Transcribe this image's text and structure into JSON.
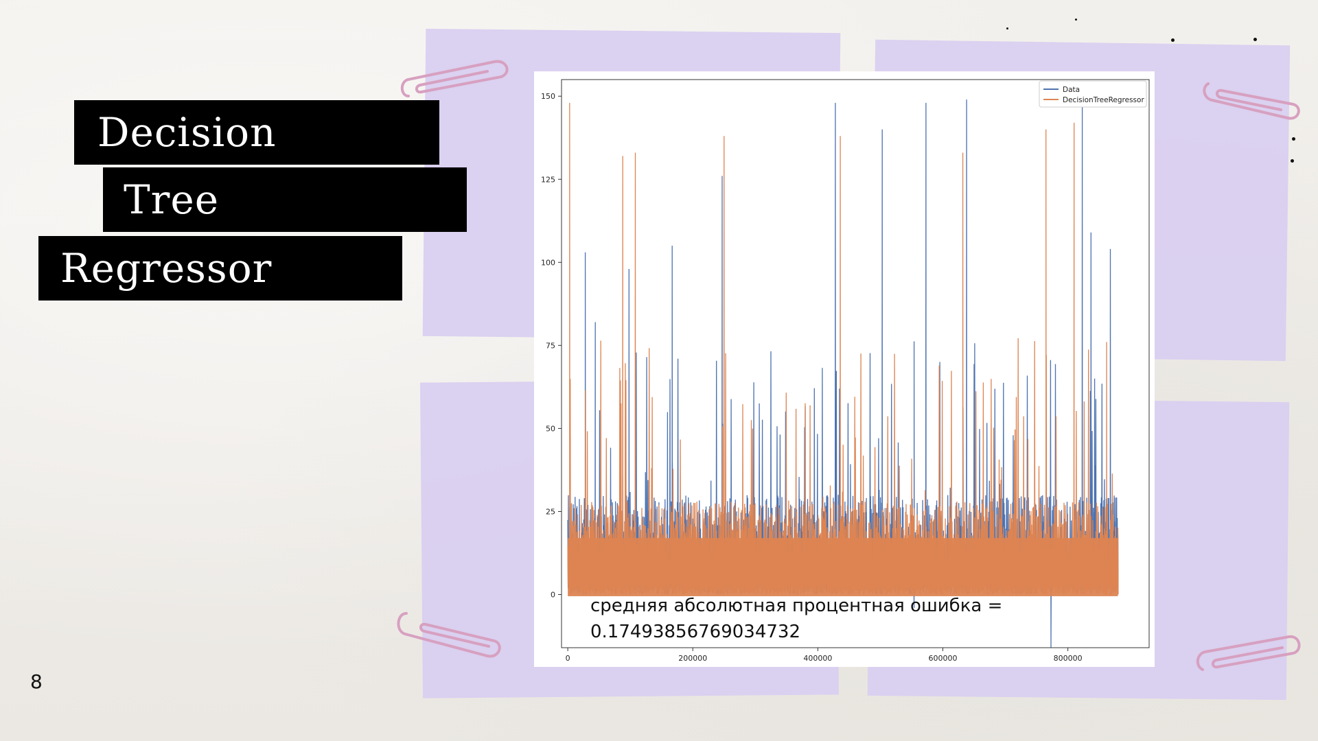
{
  "slide": {
    "title_lines": [
      "Decision",
      "Tree",
      "Regressor"
    ],
    "page_number": "8"
  },
  "colors": {
    "note": "#d9cff0",
    "title_bg": "#000000",
    "title_text": "#ffffff",
    "data_series": "#4c72b0",
    "model_series": "#dd8452"
  },
  "chart_data": {
    "type": "line",
    "series": [
      {
        "name": "Data",
        "color": "#4c72b0"
      },
      {
        "name": "DecisionTreeRegressor",
        "color": "#dd8452"
      }
    ],
    "xlim": [
      -10000,
      930000
    ],
    "ylim": [
      -16,
      155
    ],
    "x_ticks": [
      "0",
      "200000",
      "400000",
      "600000",
      "800000"
    ],
    "x_tick_values": [
      0,
      200000,
      400000,
      600000,
      800000
    ],
    "y_ticks": [
      "0",
      "25",
      "50",
      "75",
      "100",
      "125",
      "150"
    ],
    "y_tick_values": [
      0,
      25,
      50,
      75,
      100,
      125,
      150
    ],
    "x_range_data": [
      0,
      880000
    ],
    "legend_position": "top-right",
    "annotation_line1": "средняя абсолютная процентная ошибка =",
    "annotation_line2": "0.17493856769034732",
    "data_peaks": [
      {
        "x": 28000,
        "y": 103
      },
      {
        "x": 44000,
        "y": 82
      },
      {
        "x": 98000,
        "y": 98
      },
      {
        "x": 167000,
        "y": 105
      },
      {
        "x": 247000,
        "y": 126
      },
      {
        "x": 428000,
        "y": 148
      },
      {
        "x": 503000,
        "y": 140
      },
      {
        "x": 573000,
        "y": 148
      },
      {
        "x": 638000,
        "y": 149
      },
      {
        "x": 823000,
        "y": 147
      },
      {
        "x": 837000,
        "y": 109
      },
      {
        "x": 868000,
        "y": 104
      }
    ],
    "data_troughs": [
      {
        "x": 554000,
        "y": -4
      },
      {
        "x": 773000,
        "y": -16
      }
    ],
    "model_peaks": [
      {
        "x": 3000,
        "y": 148
      },
      {
        "x": 88000,
        "y": 132
      },
      {
        "x": 108000,
        "y": 133
      },
      {
        "x": 250000,
        "y": 138
      },
      {
        "x": 436000,
        "y": 138
      },
      {
        "x": 632000,
        "y": 133
      },
      {
        "x": 765000,
        "y": 140
      },
      {
        "x": 810000,
        "y": 142
      },
      {
        "x": 862000,
        "y": 76
      }
    ]
  }
}
